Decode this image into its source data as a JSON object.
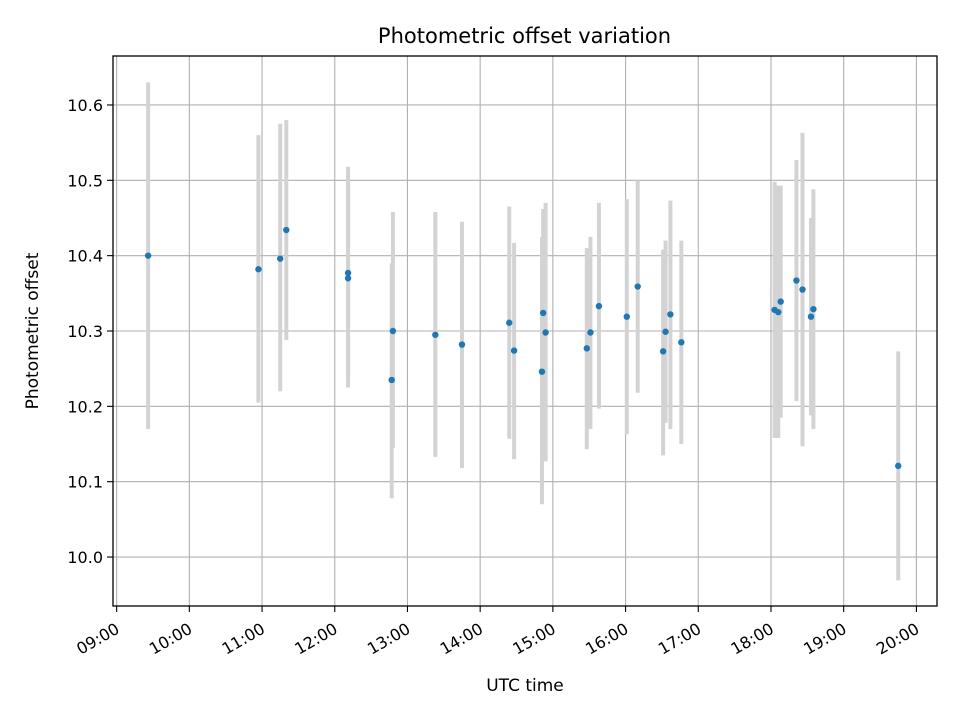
{
  "chart_data": {
    "type": "scatter",
    "title": "Photometric offset variation",
    "xlabel": "UTC time",
    "ylabel": "Photometric offset",
    "xlim": [
      "08:57",
      "20:17"
    ],
    "ylim": [
      9.935,
      10.665
    ],
    "x_ticks": [
      "09:00",
      "10:00",
      "11:00",
      "12:00",
      "13:00",
      "14:00",
      "15:00",
      "16:00",
      "17:00",
      "18:00",
      "19:00",
      "20:00"
    ],
    "y_ticks": [
      "10.0",
      "10.1",
      "10.2",
      "10.3",
      "10.4",
      "10.5",
      "10.6"
    ],
    "grid": true,
    "colors": {
      "points": "#1f77b4",
      "error_bars": "#d3d3d3",
      "grid": "#b0b0b0"
    },
    "series": [
      {
        "points": [
          {
            "x": "09:26",
            "y": 10.4,
            "ylow": 10.17,
            "yhigh": 10.63
          },
          {
            "x": "10:57",
            "y": 10.382,
            "ylow": 10.205,
            "yhigh": 10.56
          },
          {
            "x": "11:15",
            "y": 10.396,
            "ylow": 10.22,
            "yhigh": 10.575
          },
          {
            "x": "11:20",
            "y": 10.434,
            "ylow": 10.288,
            "yhigh": 10.58
          },
          {
            "x": "12:11",
            "y": 10.377,
            "ylow": 10.225,
            "yhigh": 10.518
          },
          {
            "x": "12:11",
            "y": 10.37,
            "ylow": 10.235,
            "yhigh": 10.505
          },
          {
            "x": "12:48",
            "y": 10.3,
            "ylow": 10.145,
            "yhigh": 10.458
          },
          {
            "x": "12:47",
            "y": 10.235,
            "ylow": 10.078,
            "yhigh": 10.39
          },
          {
            "x": "13:23",
            "y": 10.295,
            "ylow": 10.133,
            "yhigh": 10.458
          },
          {
            "x": "13:45",
            "y": 10.282,
            "ylow": 10.118,
            "yhigh": 10.445
          },
          {
            "x": "14:24",
            "y": 10.311,
            "ylow": 10.157,
            "yhigh": 10.465
          },
          {
            "x": "14:28",
            "y": 10.274,
            "ylow": 10.13,
            "yhigh": 10.417
          },
          {
            "x": "14:51",
            "y": 10.246,
            "ylow": 10.07,
            "yhigh": 10.425
          },
          {
            "x": "14:52",
            "y": 10.324,
            "ylow": 10.185,
            "yhigh": 10.462
          },
          {
            "x": "14:54",
            "y": 10.298,
            "ylow": 10.127,
            "yhigh": 10.47
          },
          {
            "x": "15:28",
            "y": 10.277,
            "ylow": 10.143,
            "yhigh": 10.41
          },
          {
            "x": "15:31",
            "y": 10.298,
            "ylow": 10.17,
            "yhigh": 10.425
          },
          {
            "x": "15:38",
            "y": 10.333,
            "ylow": 10.197,
            "yhigh": 10.47
          },
          {
            "x": "16:01",
            "y": 10.319,
            "ylow": 10.163,
            "yhigh": 10.475
          },
          {
            "x": "16:10",
            "y": 10.359,
            "ylow": 10.218,
            "yhigh": 10.5
          },
          {
            "x": "16:31",
            "y": 10.273,
            "ylow": 10.135,
            "yhigh": 10.408
          },
          {
            "x": "16:33",
            "y": 10.299,
            "ylow": 10.178,
            "yhigh": 10.42
          },
          {
            "x": "16:37",
            "y": 10.322,
            "ylow": 10.17,
            "yhigh": 10.473
          },
          {
            "x": "16:46",
            "y": 10.285,
            "ylow": 10.15,
            "yhigh": 10.42
          },
          {
            "x": "18:03",
            "y": 10.328,
            "ylow": 10.158,
            "yhigh": 10.498
          },
          {
            "x": "18:06",
            "y": 10.325,
            "ylow": 10.158,
            "yhigh": 10.493
          },
          {
            "x": "18:08",
            "y": 10.339,
            "ylow": 10.185,
            "yhigh": 10.493
          },
          {
            "x": "18:21",
            "y": 10.367,
            "ylow": 10.207,
            "yhigh": 10.527
          },
          {
            "x": "18:26",
            "y": 10.355,
            "ylow": 10.147,
            "yhigh": 10.563
          },
          {
            "x": "18:33",
            "y": 10.319,
            "ylow": 10.188,
            "yhigh": 10.45
          },
          {
            "x": "18:35",
            "y": 10.329,
            "ylow": 10.17,
            "yhigh": 10.488
          },
          {
            "x": "19:45",
            "y": 10.121,
            "ylow": 9.969,
            "yhigh": 10.273
          }
        ]
      }
    ]
  }
}
